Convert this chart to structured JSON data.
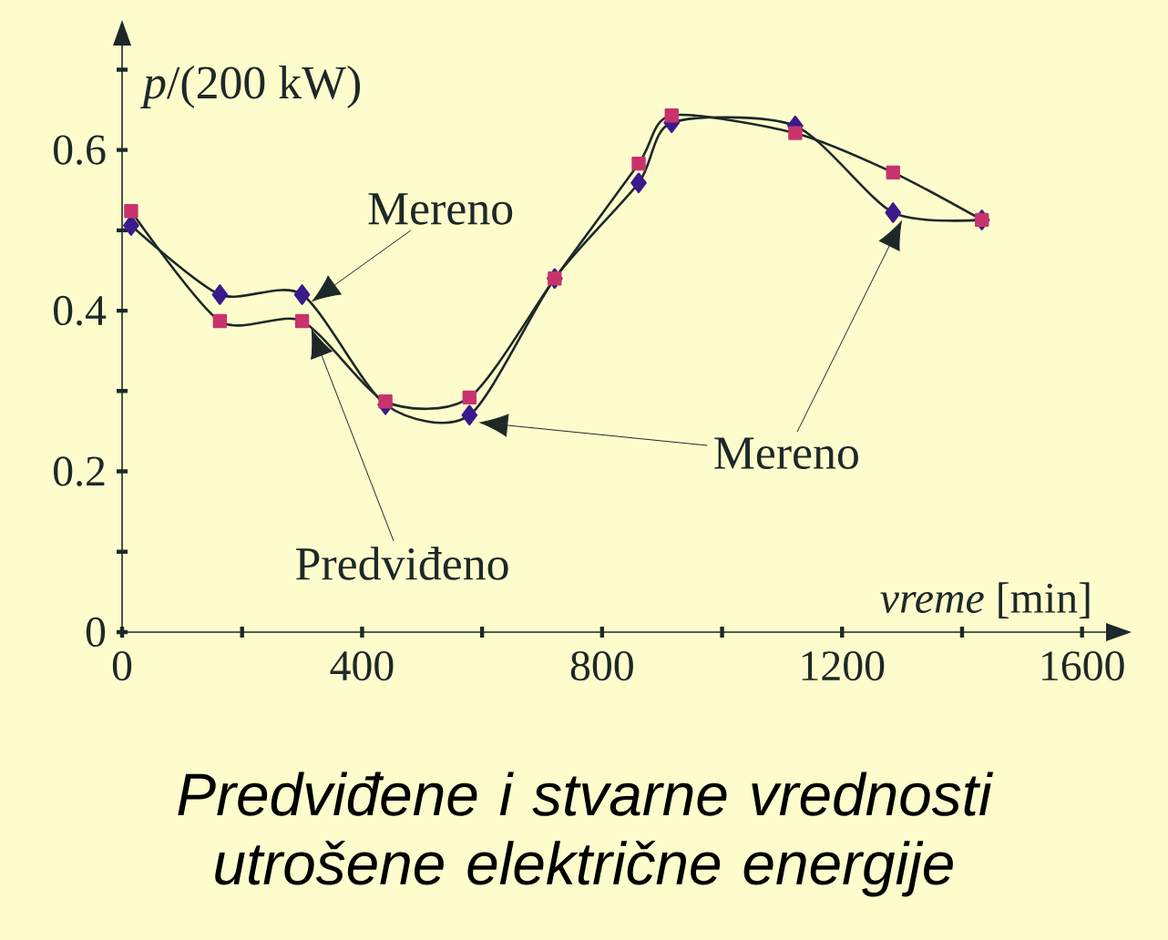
{
  "chart_data": {
    "type": "line",
    "title": "*Predviđene i stvarne vrednosti utrošene električne energije*",
    "xlabel": "*vreme* [min]",
    "ylabel": "*p*/(200 kW)",
    "xlim": [
      0,
      1640
    ],
    "ylim": [
      0,
      0.73
    ],
    "xticks": [
      0,
      {
        "value": 200,
        "label": null
      },
      400,
      {
        "value": 600,
        "label": null
      },
      800,
      {
        "value": 1000,
        "label": null
      },
      1200,
      {
        "value": 1400,
        "label": null
      },
      1600
    ],
    "yticks": [
      0,
      {
        "value": 0.1,
        "label": null
      },
      0.2,
      {
        "value": 0.3,
        "label": null
      },
      0.4,
      {
        "value": 0.5,
        "label": null
      },
      0.6,
      {
        "value": 0.7,
        "label": null
      }
    ],
    "series": [
      {
        "name": "Mereno",
        "color": "#3b1a8c",
        "marker": "diamond",
        "x": [
          15,
          163,
          300,
          439,
          579,
          721,
          861,
          916,
          1122,
          1285,
          1433
        ],
        "values": [
          0.506,
          0.42,
          0.42,
          0.283,
          0.27,
          0.44,
          0.559,
          0.634,
          0.63,
          0.522,
          0.513
        ]
      },
      {
        "name": "Predviđeno",
        "color": "#c8336e",
        "marker": "square",
        "x": [
          15,
          163,
          300,
          439,
          579,
          721,
          861,
          916,
          1122,
          1285,
          1433
        ],
        "values": [
          0.524,
          0.387,
          0.387,
          0.287,
          0.292,
          0.44,
          0.583,
          0.643,
          0.621,
          0.572,
          0.513
        ]
      }
    ]
  }
}
